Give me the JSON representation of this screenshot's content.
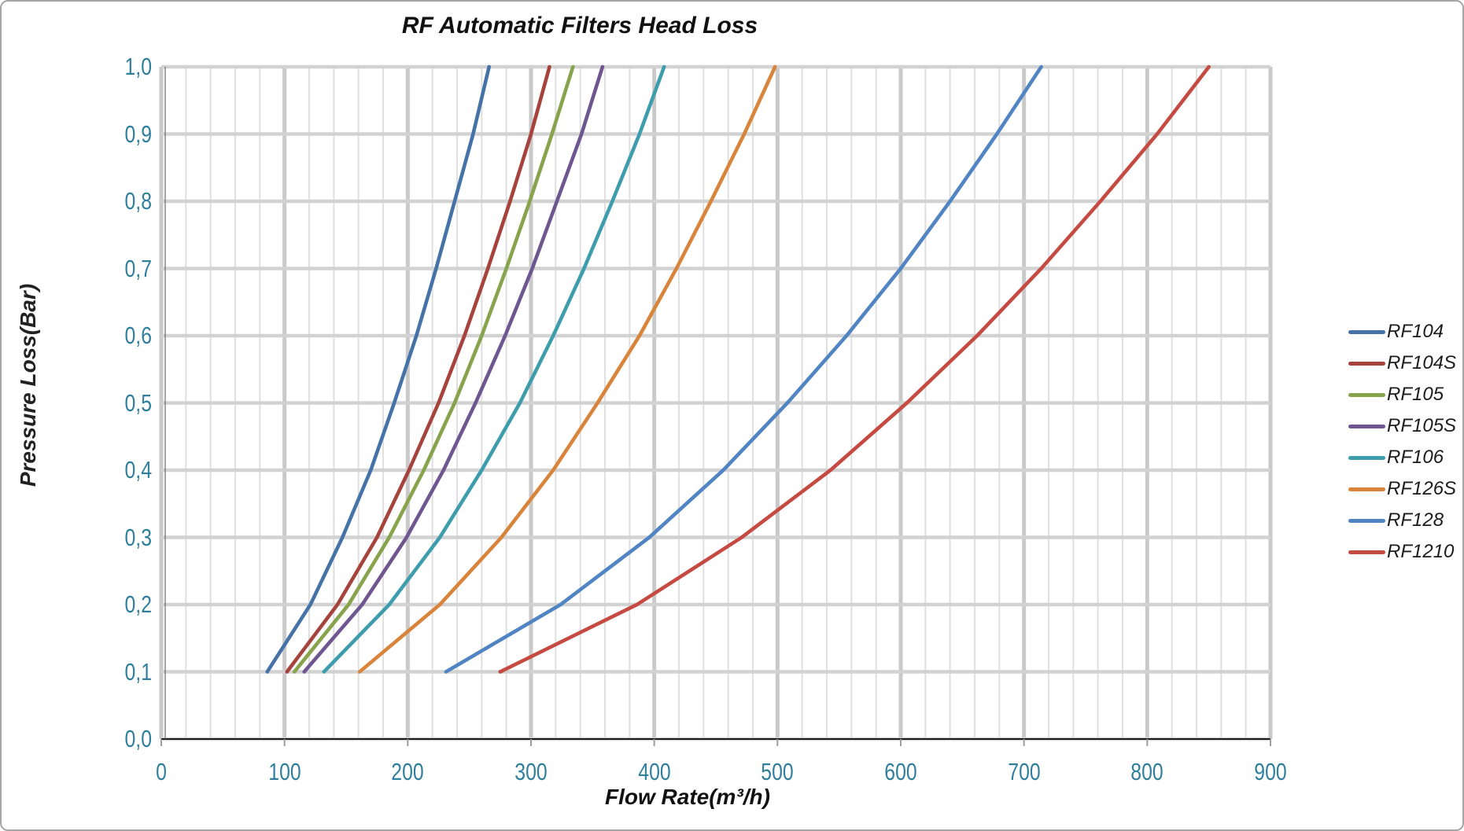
{
  "chart_data": {
    "type": "line",
    "title": "RF Automatic Filters Head Loss",
    "xlabel": "Flow Rate(m³/h)",
    "ylabel": "Pressure Loss(Bar)",
    "xlim": [
      0,
      900
    ],
    "ylim": [
      0.0,
      1.0
    ],
    "x_ticks": [
      "0",
      "100",
      "200",
      "300",
      "400",
      "500",
      "600",
      "700",
      "800",
      "900"
    ],
    "y_ticks": [
      "1,0",
      "0,9",
      "0,8",
      "0,7",
      "0,6",
      "0,5",
      "0,4",
      "0,3",
      "0,2",
      "0,1",
      "0,0"
    ],
    "grid": {
      "minor_x_step": 20,
      "major_x_step": 100,
      "y_step": 0.1,
      "minor_color": "#dcdcdc",
      "major_color": "#c9c9c9",
      "horizontal_color": "#d2d2d2",
      "axis_color": "#1a1a1a",
      "tick_label_color": "#2f7f9d"
    },
    "legend_position": "right",
    "pressure_points": [
      0.1,
      0.2,
      0.3,
      0.4,
      0.5,
      0.6,
      0.7,
      0.8,
      0.9,
      1.0
    ],
    "series": [
      {
        "name": "RF104",
        "color": "#4573a7",
        "flows": [
          86,
          121,
          147,
          170,
          189,
          207,
          223,
          238,
          253,
          266
        ]
      },
      {
        "name": "RF104S",
        "color": "#a6433d",
        "flows": [
          102,
          143,
          175,
          201,
          225,
          246,
          265,
          283,
          300,
          315
        ]
      },
      {
        "name": "RF105",
        "color": "#87a34c",
        "flows": [
          108,
          152,
          185,
          213,
          238,
          260,
          280,
          299,
          317,
          334
        ]
      },
      {
        "name": "RF105S",
        "color": "#6f5690",
        "flows": [
          116,
          163,
          199,
          229,
          255,
          279,
          301,
          321,
          341,
          358
        ]
      },
      {
        "name": "RF106",
        "color": "#3e9dad",
        "flows": [
          132,
          185,
          226,
          260,
          291,
          318,
          343,
          366,
          388,
          408
        ]
      },
      {
        "name": "RF126S",
        "color": "#d9843b",
        "flows": [
          161,
          226,
          276,
          318,
          354,
          388,
          418,
          446,
          473,
          498
        ]
      },
      {
        "name": "RF128",
        "color": "#5184c2",
        "flows": [
          231,
          324,
          396,
          456,
          508,
          556,
          600,
          640,
          678,
          714
        ]
      },
      {
        "name": "RF1210",
        "color": "#c54a42",
        "flows": [
          275,
          386,
          471,
          543,
          605,
          662,
          714,
          762,
          808,
          850
        ]
      }
    ]
  }
}
